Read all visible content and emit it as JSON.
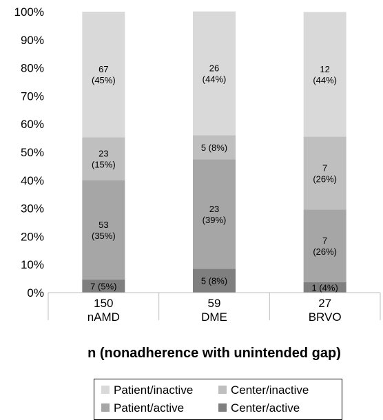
{
  "chart_data": {
    "type": "stacked_bar_100",
    "x_label": "n (nonadherence with unintended gap)",
    "categories": [
      "150\nnAMD",
      "59\nDME",
      "27\nBRVO"
    ],
    "series": [
      {
        "name": "Center/active",
        "color": "#7f7f7f",
        "values": [
          4.7,
          8.5,
          3.7
        ],
        "value_labels": [
          "7 (5%)",
          "5 (8%)",
          "1 (4%)"
        ]
      },
      {
        "name": "Patient/active",
        "color": "#a6a6a6",
        "values": [
          35.3,
          39.0,
          25.9
        ],
        "value_labels": [
          "53\n(35%)",
          "23\n(39%)",
          "7\n(26%)"
        ]
      },
      {
        "name": "Center/inactive",
        "color": "#bfbfbf",
        "values": [
          15.3,
          8.5,
          25.9
        ],
        "value_labels": [
          "23\n(15%)",
          "5 (8%)",
          "7\n(26%)"
        ]
      },
      {
        "name": "Patient/inactive",
        "color": "#d9d9d9",
        "values": [
          44.7,
          44.1,
          44.4
        ],
        "value_labels": [
          "67\n(45%)",
          "26\n(44%)",
          "12\n(44%)"
        ]
      }
    ],
    "ylim": [
      0,
      100
    ],
    "yticks": [
      {
        "value": 0,
        "label": "0%"
      },
      {
        "value": 10,
        "label": "10%"
      },
      {
        "value": 20,
        "label": "20%"
      },
      {
        "value": 30,
        "label": "30%"
      },
      {
        "value": 40,
        "label": "40%"
      },
      {
        "value": 50,
        "label": "50%"
      },
      {
        "value": 60,
        "label": "60%"
      },
      {
        "value": 70,
        "label": "70%"
      },
      {
        "value": 80,
        "label": "80%"
      },
      {
        "value": 90,
        "label": "90%"
      },
      {
        "value": 100,
        "label": "100%"
      }
    ],
    "grid": false
  }
}
